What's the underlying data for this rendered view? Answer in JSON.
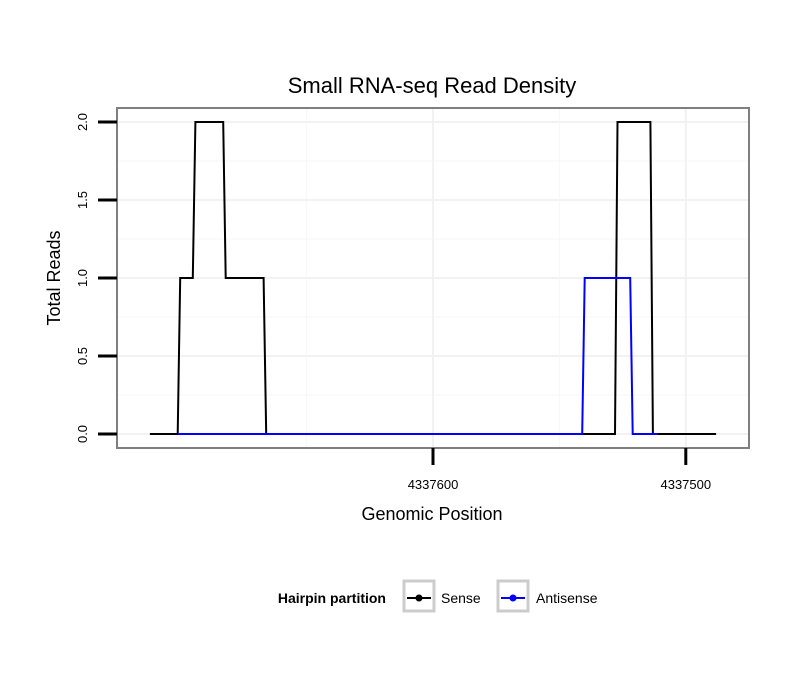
{
  "chart_data": {
    "type": "line",
    "title": "Small RNA-seq Read Density",
    "xlabel": "Genomic Position",
    "ylabel": "Total Reads",
    "xlim": [
      4337725,
      4337475
    ],
    "ylim": [
      -0.09,
      2.09
    ],
    "x_reversed": true,
    "grid": true,
    "x_ticks": [
      {
        "value": 4337600,
        "label": "4337600"
      },
      {
        "value": 4337500,
        "label": "4337500"
      }
    ],
    "y_ticks": [
      {
        "value": 0,
        "label": "0.0"
      },
      {
        "value": 0.5,
        "label": "0.5"
      },
      {
        "value": 1,
        "label": "1.0"
      },
      {
        "value": 1.5,
        "label": "1.5"
      },
      {
        "value": 2,
        "label": "2.0"
      }
    ],
    "legend": {
      "title": "Hairpin partition",
      "position": "bottom",
      "entries": [
        {
          "name": "Sense",
          "color": "#000000"
        },
        {
          "name": "Antisense",
          "color": "#0000ff"
        }
      ]
    },
    "series": [
      {
        "name": "Sense",
        "color": "#000000",
        "x": [
          4337712,
          4337701,
          4337700,
          4337695,
          4337694,
          4337683,
          4337682,
          4337667,
          4337666,
          4337528,
          4337527,
          4337514,
          4337513,
          4337488
        ],
        "y": [
          0,
          0,
          1,
          1,
          2,
          2,
          1,
          1,
          0,
          0,
          2,
          2,
          0,
          0
        ]
      },
      {
        "name": "Antisense",
        "color": "#0000ff",
        "x": [
          4337701,
          4337666,
          4337541,
          4337540,
          4337522,
          4337521,
          4337511
        ],
        "y": [
          0,
          0,
          0,
          1,
          1,
          0,
          0
        ]
      }
    ]
  }
}
